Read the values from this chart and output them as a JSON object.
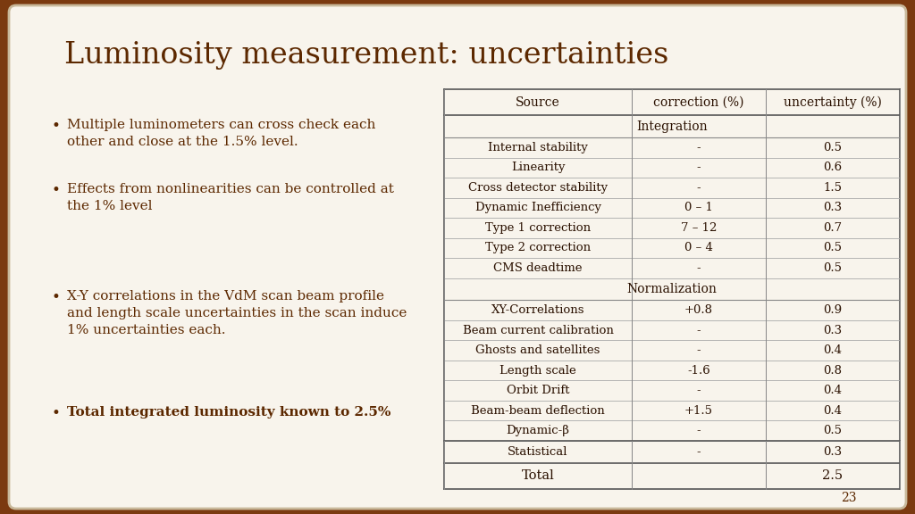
{
  "title": "Luminosity measurement: uncertainties",
  "title_color": "#5C2800",
  "bg_outer": "#7B3A10",
  "bg_inner": "#F8F4EC",
  "bullet_points": [
    "Multiple luminometers can cross check each\nother and close at the 1.5% level.",
    "Effects from nonlinearities can be controlled at\nthe 1% level",
    "X-Y correlations in the VdM scan beam profile\nand length scale uncertainties in the scan induce\n1% uncertainties each.",
    "Total integrated luminosity known to 2.5%"
  ],
  "bullet_bold": [
    false,
    false,
    false,
    true
  ],
  "table_headers": [
    "Source",
    "correction (%)",
    "uncertainty (%)"
  ],
  "section1_label": "Integration",
  "section1_rows": [
    [
      "Internal stability",
      "-",
      "0.5"
    ],
    [
      "Linearity",
      "-",
      "0.6"
    ],
    [
      "Cross detector stability",
      "-",
      "1.5"
    ],
    [
      "Dynamic Inefficiency",
      "0 – 1",
      "0.3"
    ],
    [
      "Type 1 correction",
      "7 – 12",
      "0.7"
    ],
    [
      "Type 2 correction",
      "0 – 4",
      "0.5"
    ],
    [
      "CMS deadtime",
      "-",
      "0.5"
    ]
  ],
  "section2_label": "Normalization",
  "section2_rows": [
    [
      "XY-Correlations",
      "+0.8",
      "0.9"
    ],
    [
      "Beam current calibration",
      "-",
      "0.3"
    ],
    [
      "Ghosts and satellites",
      "-",
      "0.4"
    ],
    [
      "Length scale",
      "-1.6",
      "0.8"
    ],
    [
      "Orbit Drift",
      "-",
      "0.4"
    ],
    [
      "Beam-beam deflection",
      "+1.5",
      "0.4"
    ],
    [
      "Dynamic-β",
      "-",
      "0.5"
    ]
  ],
  "statistical_row": [
    "Statistical",
    "-",
    "0.3"
  ],
  "total_row": [
    "Total",
    "",
    "2.5"
  ],
  "slide_number": "23",
  "text_color": "#5C2800",
  "table_text_color": "#2A1000",
  "line_color": "#888888",
  "thick_line_color": "#555555"
}
